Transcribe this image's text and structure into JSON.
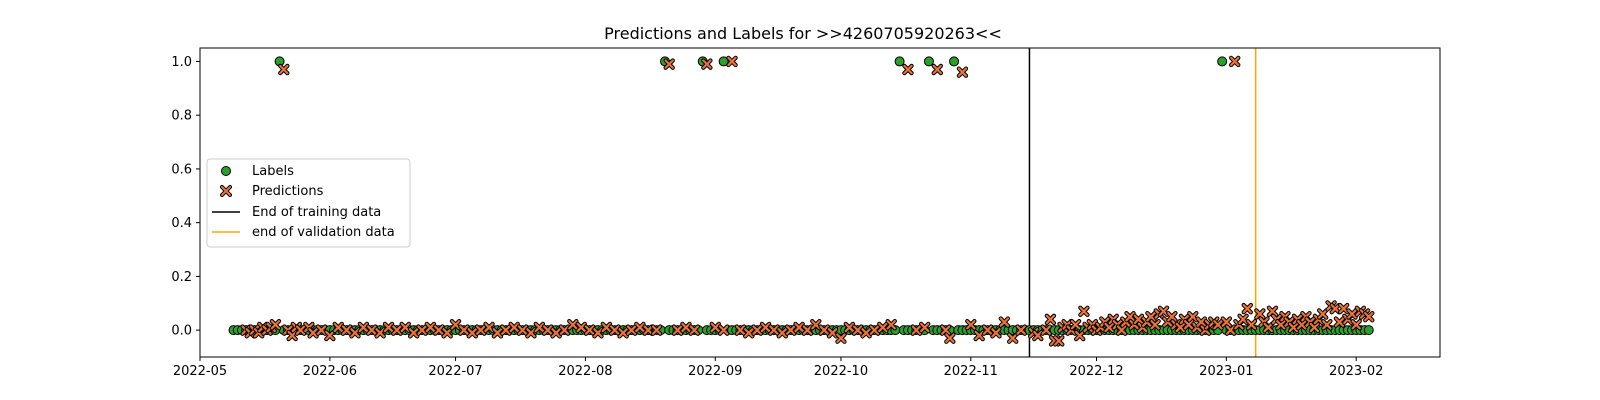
{
  "chart_data": {
    "type": "scatter",
    "title": "Predictions and Labels for >>4260705920263<<",
    "xlabel": "",
    "ylabel": "",
    "x_type": "date",
    "xlim": [
      "2022-05-01",
      "2023-02-21"
    ],
    "ylim": [
      -0.1,
      1.05
    ],
    "x_ticks": [
      "2022-05-01",
      "2022-06-01",
      "2022-07-01",
      "2022-08-01",
      "2022-09-01",
      "2022-10-01",
      "2022-11-01",
      "2022-12-01",
      "2023-01-01",
      "2023-02-01"
    ],
    "x_tick_labels": [
      "2022-05",
      "2022-06",
      "2022-07",
      "2022-08",
      "2022-09",
      "2022-10",
      "2022-11",
      "2022-12",
      "2023-01",
      "2023-02"
    ],
    "y_ticks": [
      0.0,
      0.2,
      0.4,
      0.6,
      0.8,
      1.0
    ],
    "y_tick_labels": [
      "0.0",
      "0.2",
      "0.4",
      "0.6",
      "0.8",
      "1.0"
    ],
    "grid": false,
    "legend": {
      "placement": "center-left",
      "entries": [
        "Labels",
        "Predictions",
        "End of training data",
        "end of validation data"
      ]
    },
    "vlines": [
      {
        "name": "End of training data",
        "x": "2022-11-15",
        "color": "#000000"
      },
      {
        "name": "end of validation data",
        "x": "2023-01-08",
        "color": "#ffa500"
      }
    ],
    "series": [
      {
        "name": "Labels",
        "marker": "circle",
        "color": "#2ca02c",
        "date_range": [
          "2022-05-09",
          "2023-02-04"
        ],
        "baseline_value": 0.0,
        "exceptions": [
          {
            "x": "2022-05-20",
            "y": 1.0
          },
          {
            "x": "2022-08-20",
            "y": 1.0
          },
          {
            "x": "2022-08-29",
            "y": 1.0
          },
          {
            "x": "2022-09-03",
            "y": 1.0
          },
          {
            "x": "2022-10-15",
            "y": 1.0
          },
          {
            "x": "2022-10-22",
            "y": 1.0
          },
          {
            "x": "2022-10-28",
            "y": 1.0
          },
          {
            "x": "2022-12-31",
            "y": 1.0
          }
        ]
      },
      {
        "name": "Predictions",
        "marker": "x",
        "color": "#e8743b",
        "points": [
          {
            "x": "2022-05-12",
            "y": 0.0
          },
          {
            "x": "2022-05-13",
            "y": -0.01
          },
          {
            "x": "2022-05-14",
            "y": 0.0
          },
          {
            "x": "2022-05-15",
            "y": -0.01
          },
          {
            "x": "2022-05-16",
            "y": 0.01
          },
          {
            "x": "2022-05-17",
            "y": 0.0
          },
          {
            "x": "2022-05-18",
            "y": 0.01
          },
          {
            "x": "2022-05-19",
            "y": 0.02
          },
          {
            "x": "2022-05-21",
            "y": 0.97
          },
          {
            "x": "2022-05-22",
            "y": 0.0
          },
          {
            "x": "2022-05-23",
            "y": -0.02
          },
          {
            "x": "2022-05-24",
            "y": 0.01
          },
          {
            "x": "2022-05-25",
            "y": 0.0
          },
          {
            "x": "2022-05-27",
            "y": 0.01
          },
          {
            "x": "2022-05-28",
            "y": -0.01
          },
          {
            "x": "2022-05-30",
            "y": 0.0
          },
          {
            "x": "2022-06-01",
            "y": -0.02
          },
          {
            "x": "2022-06-03",
            "y": 0.01
          },
          {
            "x": "2022-06-05",
            "y": 0.0
          },
          {
            "x": "2022-06-07",
            "y": -0.01
          },
          {
            "x": "2022-06-09",
            "y": 0.01
          },
          {
            "x": "2022-06-11",
            "y": 0.0
          },
          {
            "x": "2022-06-13",
            "y": -0.01
          },
          {
            "x": "2022-06-15",
            "y": 0.01
          },
          {
            "x": "2022-06-17",
            "y": 0.0
          },
          {
            "x": "2022-06-19",
            "y": 0.01
          },
          {
            "x": "2022-06-21",
            "y": -0.01
          },
          {
            "x": "2022-06-23",
            "y": 0.0
          },
          {
            "x": "2022-06-25",
            "y": 0.01
          },
          {
            "x": "2022-06-27",
            "y": 0.0
          },
          {
            "x": "2022-06-29",
            "y": -0.01
          },
          {
            "x": "2022-07-01",
            "y": 0.02
          },
          {
            "x": "2022-07-03",
            "y": 0.0
          },
          {
            "x": "2022-07-05",
            "y": -0.01
          },
          {
            "x": "2022-07-07",
            "y": 0.0
          },
          {
            "x": "2022-07-09",
            "y": 0.01
          },
          {
            "x": "2022-07-11",
            "y": -0.01
          },
          {
            "x": "2022-07-13",
            "y": 0.0
          },
          {
            "x": "2022-07-15",
            "y": 0.01
          },
          {
            "x": "2022-07-17",
            "y": 0.0
          },
          {
            "x": "2022-07-19",
            "y": -0.01
          },
          {
            "x": "2022-07-21",
            "y": 0.01
          },
          {
            "x": "2022-07-23",
            "y": 0.0
          },
          {
            "x": "2022-07-25",
            "y": -0.01
          },
          {
            "x": "2022-07-27",
            "y": 0.0
          },
          {
            "x": "2022-07-29",
            "y": 0.02
          },
          {
            "x": "2022-07-31",
            "y": 0.01
          },
          {
            "x": "2022-08-02",
            "y": 0.0
          },
          {
            "x": "2022-08-04",
            "y": -0.01
          },
          {
            "x": "2022-08-06",
            "y": 0.01
          },
          {
            "x": "2022-08-08",
            "y": 0.0
          },
          {
            "x": "2022-08-10",
            "y": -0.01
          },
          {
            "x": "2022-08-12",
            "y": 0.0
          },
          {
            "x": "2022-08-14",
            "y": 0.01
          },
          {
            "x": "2022-08-16",
            "y": 0.0
          },
          {
            "x": "2022-08-18",
            "y": 0.0
          },
          {
            "x": "2022-08-21",
            "y": 0.99
          },
          {
            "x": "2022-08-23",
            "y": 0.0
          },
          {
            "x": "2022-08-25",
            "y": 0.01
          },
          {
            "x": "2022-08-27",
            "y": 0.0
          },
          {
            "x": "2022-08-30",
            "y": 0.99
          },
          {
            "x": "2022-09-01",
            "y": 0.01
          },
          {
            "x": "2022-09-03",
            "y": 0.0
          },
          {
            "x": "2022-09-05",
            "y": 1.0
          },
          {
            "x": "2022-09-07",
            "y": 0.0
          },
          {
            "x": "2022-09-09",
            "y": -0.01
          },
          {
            "x": "2022-09-11",
            "y": 0.0
          },
          {
            "x": "2022-09-13",
            "y": 0.01
          },
          {
            "x": "2022-09-15",
            "y": 0.0
          },
          {
            "x": "2022-09-17",
            "y": -0.01
          },
          {
            "x": "2022-09-19",
            "y": 0.0
          },
          {
            "x": "2022-09-21",
            "y": 0.01
          },
          {
            "x": "2022-09-23",
            "y": 0.0
          },
          {
            "x": "2022-09-25",
            "y": 0.02
          },
          {
            "x": "2022-09-27",
            "y": 0.0
          },
          {
            "x": "2022-09-29",
            "y": -0.01
          },
          {
            "x": "2022-10-01",
            "y": -0.03
          },
          {
            "x": "2022-10-03",
            "y": 0.01
          },
          {
            "x": "2022-10-05",
            "y": 0.0
          },
          {
            "x": "2022-10-07",
            "y": -0.01
          },
          {
            "x": "2022-10-09",
            "y": 0.0
          },
          {
            "x": "2022-10-11",
            "y": 0.01
          },
          {
            "x": "2022-10-13",
            "y": 0.02
          },
          {
            "x": "2022-10-17",
            "y": 0.97
          },
          {
            "x": "2022-10-19",
            "y": 0.0
          },
          {
            "x": "2022-10-21",
            "y": 0.01
          },
          {
            "x": "2022-10-24",
            "y": 0.97
          },
          {
            "x": "2022-10-26",
            "y": 0.0
          },
          {
            "x": "2022-10-27",
            "y": -0.03
          },
          {
            "x": "2022-10-30",
            "y": 0.96
          },
          {
            "x": "2022-11-01",
            "y": 0.02
          },
          {
            "x": "2022-11-03",
            "y": -0.02
          },
          {
            "x": "2022-11-05",
            "y": 0.0
          },
          {
            "x": "2022-11-07",
            "y": -0.01
          },
          {
            "x": "2022-11-09",
            "y": 0.03
          },
          {
            "x": "2022-11-11",
            "y": -0.03
          },
          {
            "x": "2022-11-13",
            "y": 0.0
          },
          {
            "x": "2022-11-16",
            "y": -0.01
          },
          {
            "x": "2022-11-17",
            "y": -0.02
          },
          {
            "x": "2022-11-19",
            "y": 0.0
          },
          {
            "x": "2022-11-20",
            "y": 0.04
          },
          {
            "x": "2022-11-21",
            "y": -0.04
          },
          {
            "x": "2022-11-22",
            "y": -0.04
          },
          {
            "x": "2022-11-23",
            "y": 0.01
          },
          {
            "x": "2022-11-24",
            "y": 0.02
          },
          {
            "x": "2022-11-25",
            "y": 0.0
          },
          {
            "x": "2022-11-26",
            "y": 0.02
          },
          {
            "x": "2022-11-27",
            "y": -0.02
          },
          {
            "x": "2022-11-28",
            "y": 0.07
          },
          {
            "x": "2022-11-29",
            "y": 0.01
          },
          {
            "x": "2022-11-30",
            "y": 0.02
          },
          {
            "x": "2022-12-01",
            "y": 0.0
          },
          {
            "x": "2022-12-02",
            "y": 0.01
          },
          {
            "x": "2022-12-03",
            "y": 0.03
          },
          {
            "x": "2022-12-04",
            "y": 0.01
          },
          {
            "x": "2022-12-05",
            "y": 0.04
          },
          {
            "x": "2022-12-06",
            "y": 0.02
          },
          {
            "x": "2022-12-07",
            "y": 0.0
          },
          {
            "x": "2022-12-08",
            "y": 0.03
          },
          {
            "x": "2022-12-09",
            "y": 0.05
          },
          {
            "x": "2022-12-10",
            "y": 0.02
          },
          {
            "x": "2022-12-11",
            "y": 0.04
          },
          {
            "x": "2022-12-12",
            "y": 0.01
          },
          {
            "x": "2022-12-13",
            "y": 0.03
          },
          {
            "x": "2022-12-14",
            "y": 0.05
          },
          {
            "x": "2022-12-15",
            "y": 0.02
          },
          {
            "x": "2022-12-16",
            "y": 0.06
          },
          {
            "x": "2022-12-17",
            "y": 0.07
          },
          {
            "x": "2022-12-18",
            "y": 0.03
          },
          {
            "x": "2022-12-19",
            "y": 0.05
          },
          {
            "x": "2022-12-20",
            "y": 0.02
          },
          {
            "x": "2022-12-21",
            "y": 0.01
          },
          {
            "x": "2022-12-22",
            "y": 0.04
          },
          {
            "x": "2022-12-23",
            "y": 0.02
          },
          {
            "x": "2022-12-24",
            "y": 0.05
          },
          {
            "x": "2022-12-25",
            "y": 0.01
          },
          {
            "x": "2022-12-26",
            "y": 0.03
          },
          {
            "x": "2022-12-27",
            "y": 0.0
          },
          {
            "x": "2022-12-28",
            "y": 0.02
          },
          {
            "x": "2022-12-29",
            "y": 0.03
          },
          {
            "x": "2022-12-30",
            "y": 0.02
          },
          {
            "x": "2023-01-01",
            "y": 0.03
          },
          {
            "x": "2023-01-02",
            "y": 0.0
          },
          {
            "x": "2023-01-03",
            "y": 1.0
          },
          {
            "x": "2023-01-04",
            "y": 0.02
          },
          {
            "x": "2023-01-05",
            "y": 0.04
          },
          {
            "x": "2023-01-06",
            "y": 0.08
          },
          {
            "x": "2023-01-07",
            "y": 0.02
          },
          {
            "x": "2023-01-09",
            "y": 0.06
          },
          {
            "x": "2023-01-10",
            "y": 0.03
          },
          {
            "x": "2023-01-11",
            "y": 0.01
          },
          {
            "x": "2023-01-12",
            "y": 0.07
          },
          {
            "x": "2023-01-13",
            "y": 0.04
          },
          {
            "x": "2023-01-14",
            "y": 0.02
          },
          {
            "x": "2023-01-15",
            "y": 0.05
          },
          {
            "x": "2023-01-16",
            "y": 0.03
          },
          {
            "x": "2023-01-17",
            "y": 0.01
          },
          {
            "x": "2023-01-18",
            "y": 0.04
          },
          {
            "x": "2023-01-19",
            "y": 0.02
          },
          {
            "x": "2023-01-20",
            "y": 0.05
          },
          {
            "x": "2023-01-21",
            "y": 0.03
          },
          {
            "x": "2023-01-22",
            "y": 0.01
          },
          {
            "x": "2023-01-23",
            "y": 0.04
          },
          {
            "x": "2023-01-24",
            "y": 0.06
          },
          {
            "x": "2023-01-25",
            "y": 0.02
          },
          {
            "x": "2023-01-26",
            "y": 0.09
          },
          {
            "x": "2023-01-27",
            "y": 0.08
          },
          {
            "x": "2023-01-28",
            "y": 0.03
          },
          {
            "x": "2023-01-29",
            "y": 0.08
          },
          {
            "x": "2023-01-30",
            "y": 0.04
          },
          {
            "x": "2023-01-31",
            "y": 0.06
          },
          {
            "x": "2023-02-01",
            "y": 0.02
          },
          {
            "x": "2023-02-02",
            "y": 0.07
          },
          {
            "x": "2023-02-03",
            "y": 0.06
          },
          {
            "x": "2023-02-04",
            "y": 0.05
          }
        ]
      }
    ]
  }
}
